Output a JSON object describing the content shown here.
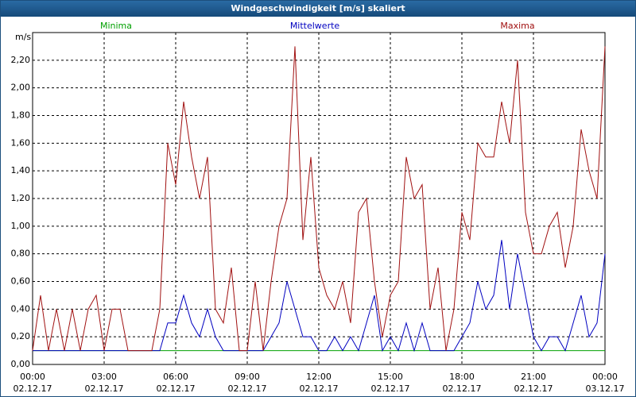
{
  "chart_data": {
    "type": "line",
    "title": "Windgeschwindigkeit [m/s] skaliert",
    "y_label": "m/s",
    "x": [
      0,
      20,
      40,
      60,
      80,
      100,
      120,
      140,
      160,
      180,
      200,
      220,
      240,
      260,
      280,
      300,
      320,
      340,
      360,
      380,
      400,
      420,
      440,
      460,
      480,
      500,
      520,
      540,
      560,
      580,
      600,
      620,
      640,
      660,
      680,
      700,
      720,
      740,
      760,
      780,
      800,
      820,
      840,
      860,
      880,
      900,
      920,
      940,
      960,
      980,
      1000,
      1020,
      1040,
      1060,
      1080,
      1100,
      1120,
      1140,
      1160,
      1180,
      1200,
      1220,
      1240,
      1260,
      1280,
      1300,
      1320,
      1340,
      1360,
      1380,
      1400,
      1420,
      1440
    ],
    "xlim": [
      0,
      1440
    ],
    "xticks": [
      {
        "value": 0,
        "label": "00:00"
      },
      {
        "value": 180,
        "label": "03:00"
      },
      {
        "value": 360,
        "label": "06:00"
      },
      {
        "value": 540,
        "label": "09:00"
      },
      {
        "value": 720,
        "label": "12:00"
      },
      {
        "value": 900,
        "label": "15:00"
      },
      {
        "value": 1080,
        "label": "18:00"
      },
      {
        "value": 1260,
        "label": "21:00"
      },
      {
        "value": 1440,
        "label": "00:00"
      }
    ],
    "xtick_dates": [
      "02.12.17",
      "02.12.17",
      "02.12.17",
      "02.12.17",
      "02.12.17",
      "02.12.17",
      "02.12.17",
      "02.12.17",
      "03.12.17"
    ],
    "ylim": [
      0,
      2.4
    ],
    "yticks": [
      {
        "value": 0,
        "label": "0,00"
      },
      {
        "value": 0.2,
        "label": "0,20"
      },
      {
        "value": 0.4,
        "label": "0,40"
      },
      {
        "value": 0.6,
        "label": "0,60"
      },
      {
        "value": 0.8,
        "label": "0,80"
      },
      {
        "value": 1.0,
        "label": "1,00"
      },
      {
        "value": 1.2,
        "label": "1,20"
      },
      {
        "value": 1.4,
        "label": "1,40"
      },
      {
        "value": 1.6,
        "label": "1,60"
      },
      {
        "value": 1.8,
        "label": "1,80"
      },
      {
        "value": 2.0,
        "label": "2,00"
      },
      {
        "value": 2.2,
        "label": "2,20"
      }
    ],
    "grid": true,
    "series": [
      {
        "name": "Minima",
        "color": "#00a000",
        "values": [
          0.1,
          0.1,
          0.1,
          0.1,
          0.1,
          0.1,
          0.1,
          0.1,
          0.1,
          0.1,
          0.1,
          0.1,
          0.1,
          0.1,
          0.1,
          0.1,
          0.1,
          0.1,
          0.1,
          0.1,
          0.1,
          0.1,
          0.1,
          0.1,
          0.1,
          0.1,
          0.1,
          0.1,
          0.1,
          0.1,
          0.1,
          0.1,
          0.1,
          0.1,
          0.1,
          0.1,
          0.1,
          0.1,
          0.1,
          0.1,
          0.1,
          0.1,
          0.1,
          0.1,
          0.1,
          0.1,
          0.1,
          0.1,
          0.1,
          0.1,
          0.1,
          0.1,
          0.1,
          0.1,
          0.1,
          0.1,
          0.1,
          0.1,
          0.1,
          0.1,
          0.1,
          0.1,
          0.1,
          0.1,
          0.1,
          0.1,
          0.1,
          0.1,
          0.1,
          0.1,
          0.1,
          0.1,
          0.1
        ]
      },
      {
        "name": "Mittelwerte",
        "color": "#0000c0",
        "values": [
          0.1,
          0.1,
          0.1,
          0.1,
          0.1,
          0.1,
          0.1,
          0.1,
          0.1,
          0.1,
          0.1,
          0.1,
          0.1,
          0.1,
          0.1,
          0.1,
          0.1,
          0.3,
          0.3,
          0.5,
          0.3,
          0.2,
          0.4,
          0.2,
          0.1,
          0.1,
          0.1,
          0.1,
          0.1,
          0.1,
          0.2,
          0.3,
          0.6,
          0.4,
          0.2,
          0.2,
          0.1,
          0.1,
          0.2,
          0.1,
          0.2,
          0.1,
          0.3,
          0.5,
          0.1,
          0.2,
          0.1,
          0.3,
          0.1,
          0.3,
          0.1,
          0.1,
          0.1,
          0.1,
          0.2,
          0.3,
          0.6,
          0.4,
          0.5,
          0.9,
          0.4,
          0.8,
          0.5,
          0.2,
          0.1,
          0.2,
          0.2,
          0.1,
          0.3,
          0.5,
          0.2,
          0.3,
          0.8
        ]
      },
      {
        "name": "Maxima",
        "color": "#a01010",
        "values": [
          0.1,
          0.5,
          0.1,
          0.4,
          0.1,
          0.4,
          0.1,
          0.4,
          0.5,
          0.1,
          0.4,
          0.4,
          0.1,
          0.1,
          0.1,
          0.1,
          0.4,
          1.6,
          1.3,
          1.9,
          1.5,
          1.2,
          1.5,
          0.4,
          0.3,
          0.7,
          0.1,
          0.1,
          0.6,
          0.1,
          0.6,
          1.0,
          1.2,
          2.3,
          0.9,
          1.5,
          0.7,
          0.5,
          0.4,
          0.6,
          0.3,
          1.1,
          1.2,
          0.6,
          0.2,
          0.5,
          0.6,
          1.5,
          1.2,
          1.3,
          0.4,
          0.7,
          0.1,
          0.4,
          1.1,
          0.9,
          1.6,
          1.5,
          1.5,
          1.9,
          1.6,
          2.2,
          1.1,
          0.8,
          0.8,
          1.0,
          1.1,
          0.7,
          1.0,
          1.7,
          1.4,
          1.2,
          2.3
        ]
      }
    ]
  }
}
